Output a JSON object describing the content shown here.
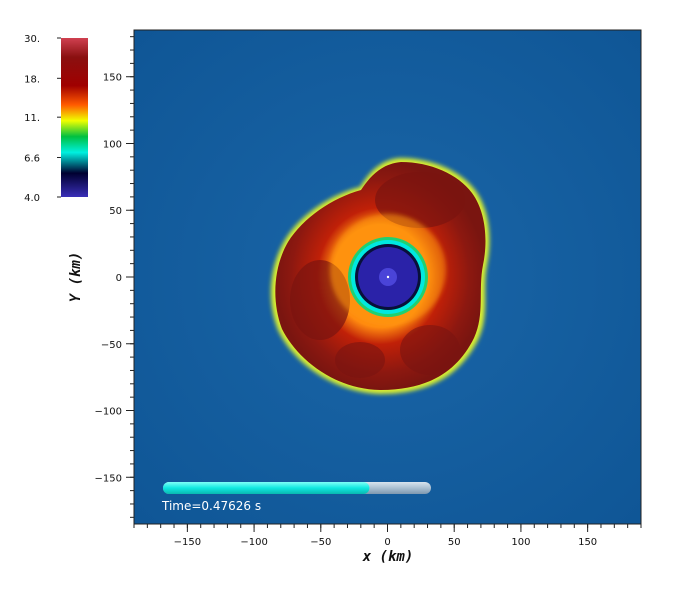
{
  "chart_data": {
    "type": "heatmap",
    "title": "",
    "xlabel": "x  (km)",
    "ylabel": "Y  (km)",
    "xlim": [
      -190,
      190
    ],
    "ylim": [
      -185,
      185
    ],
    "x_ticks": [
      -150,
      -100,
      -50,
      0,
      50,
      100,
      150
    ],
    "x_tick_labels": [
      "−150",
      "−100",
      "−50",
      "0",
      "50",
      "100",
      "150"
    ],
    "y_ticks": [
      150,
      100,
      50,
      0,
      -50,
      -100,
      -150
    ],
    "y_tick_labels": [
      "150",
      "100",
      "50",
      "0",
      "−50",
      "−100",
      "−150"
    ],
    "minor_tick_step": 10,
    "colorbar": {
      "scale": "log",
      "range": [
        4.0,
        30.0
      ],
      "tick_values": [
        30.0,
        18.0,
        11.0,
        6.6,
        4.0
      ],
      "tick_labels": [
        "30.",
        "18.",
        "11.",
        "6.6",
        "4.0"
      ],
      "colors": [
        "#3a2fb8",
        "#000030",
        "#00f0e0",
        "#00c040",
        "#f0ff00",
        "#ff6a00",
        "#a00000",
        "#601010",
        "#e06070"
      ],
      "placement": "top-left"
    },
    "background_color": "#115b9e",
    "features": {
      "shock_region": "dense red/orange turbulent region roughly x -88..75 km, y -88..88 km",
      "inner_core": "blue disk centered at origin, radius ~30 km, cyan/green ring boundary"
    },
    "time_indicator": {
      "label": "Time=0.47626 s",
      "progress_fraction": 0.77
    }
  }
}
